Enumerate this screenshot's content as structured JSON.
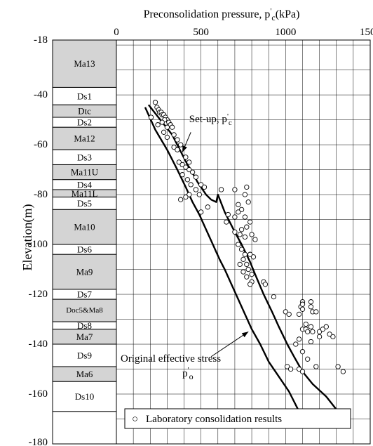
{
  "chart_data": {
    "type": "scatter",
    "title_parts": {
      "prefix": "Preconsolidation pressure, p",
      "prime": "'",
      "sub": "c",
      "suffix": "(kPa)"
    },
    "ylabel": "Elevation(m)",
    "xlim": [
      0,
      1500
    ],
    "ylim": [
      -180,
      -18
    ],
    "x_ticks": [
      0,
      500,
      1000,
      1500
    ],
    "y_ticks": [
      -18,
      -40,
      -60,
      -80,
      -100,
      -120,
      -140,
      -160,
      -180
    ],
    "grid": true,
    "legend": {
      "position": "bottom",
      "marker": "○",
      "label": "Laboratory consolidation results"
    },
    "annotations": [
      {
        "id": "setup",
        "prefix": "Set-up, p",
        "prime": "'",
        "sub": "c",
        "x": 570,
        "y": -63
      },
      {
        "id": "original",
        "line1": "Original effective stress",
        "p": "p",
        "prime": "'",
        "sub": "o",
        "x": 780,
        "y": -135
      }
    ],
    "strata": [
      {
        "label": "Ma13",
        "top": -18,
        "bottom": -37,
        "shaded": true
      },
      {
        "label": "Ds1",
        "top": -37,
        "bottom": -44,
        "shaded": false
      },
      {
        "label": "Dtc",
        "top": -44,
        "bottom": -49,
        "shaded": true
      },
      {
        "label": "Ds2",
        "top": -49,
        "bottom": -53,
        "shaded": false
      },
      {
        "label": "Ma12",
        "top": -53,
        "bottom": -62,
        "shaded": true
      },
      {
        "label": "Ds3",
        "top": -62,
        "bottom": -68,
        "shaded": false
      },
      {
        "label": "Ma11U",
        "top": -68,
        "bottom": -74,
        "shaded": true
      },
      {
        "label": "Ds4",
        "top": -74,
        "bottom": -78,
        "shaded": false
      },
      {
        "label": "Ma11L",
        "top": -78,
        "bottom": -81,
        "shaded": true
      },
      {
        "label": "Ds5",
        "top": -81,
        "bottom": -86,
        "shaded": false
      },
      {
        "label": "Ma10",
        "top": -86,
        "bottom": -100,
        "shaded": true
      },
      {
        "label": "Ds6",
        "top": -100,
        "bottom": -104,
        "shaded": false
      },
      {
        "label": "Ma9",
        "top": -104,
        "bottom": -118,
        "shaded": true
      },
      {
        "label": "Ds7",
        "top": -118,
        "bottom": -122,
        "shaded": false
      },
      {
        "label": "Doc5&Ma8",
        "top": -122,
        "bottom": -131,
        "shaded": true
      },
      {
        "label": "Ds8",
        "top": -131,
        "bottom": -134,
        "shaded": false
      },
      {
        "label": "Ma7",
        "top": -134,
        "bottom": -140,
        "shaded": true
      },
      {
        "label": "Ds9",
        "top": -140,
        "bottom": -149,
        "shaded": false
      },
      {
        "label": "Ma6",
        "top": -149,
        "bottom": -155,
        "shaded": true
      },
      {
        "label": "Ds10",
        "top": -155,
        "bottom": -167,
        "shaded": false
      },
      {
        "label": "",
        "top": -167,
        "bottom": -180,
        "shaded": false
      }
    ],
    "series": [
      {
        "name": "Set-up, p'c",
        "kind": "line",
        "points": [
          [
            190,
            -44
          ],
          [
            260,
            -50
          ],
          [
            330,
            -56
          ],
          [
            390,
            -64
          ],
          [
            420,
            -68
          ],
          [
            440,
            -70
          ],
          [
            480,
            -75
          ],
          [
            530,
            -80
          ],
          [
            560,
            -82
          ],
          [
            590,
            -83
          ],
          [
            600,
            -80
          ],
          [
            640,
            -87
          ],
          [
            700,
            -95
          ],
          [
            740,
            -100
          ],
          [
            790,
            -107
          ],
          [
            820,
            -112
          ],
          [
            870,
            -120
          ],
          [
            920,
            -127
          ],
          [
            960,
            -133
          ],
          [
            1010,
            -140
          ],
          [
            1050,
            -145
          ],
          [
            1100,
            -151
          ],
          [
            1160,
            -156
          ],
          [
            1240,
            -161
          ],
          [
            1310,
            -167
          ]
        ]
      },
      {
        "name": "Original effective stress p'o",
        "kind": "line",
        "points": [
          [
            170,
            -45
          ],
          [
            230,
            -54
          ],
          [
            300,
            -62
          ],
          [
            360,
            -70
          ],
          [
            410,
            -77
          ],
          [
            450,
            -83
          ],
          [
            490,
            -88
          ],
          [
            530,
            -94
          ],
          [
            570,
            -100
          ],
          [
            590,
            -103
          ],
          [
            610,
            -106
          ],
          [
            640,
            -110
          ],
          [
            680,
            -116
          ],
          [
            720,
            -122
          ],
          [
            760,
            -128
          ],
          [
            800,
            -134
          ],
          [
            850,
            -140
          ],
          [
            900,
            -147
          ],
          [
            960,
            -153
          ],
          [
            1020,
            -159
          ],
          [
            1080,
            -167
          ]
        ]
      },
      {
        "name": "Laboratory consolidation results",
        "kind": "scatter",
        "points": [
          [
            230,
            -43
          ],
          [
            240,
            -45
          ],
          [
            250,
            -46
          ],
          [
            255,
            -47
          ],
          [
            265,
            -47
          ],
          [
            270,
            -48
          ],
          [
            280,
            -48
          ],
          [
            290,
            -49
          ],
          [
            300,
            -50
          ],
          [
            285,
            -50
          ],
          [
            270,
            -51
          ],
          [
            310,
            -51
          ],
          [
            320,
            -52
          ],
          [
            330,
            -53
          ],
          [
            205,
            -49
          ],
          [
            245,
            -52
          ],
          [
            300,
            -53
          ],
          [
            280,
            -55
          ],
          [
            340,
            -56
          ],
          [
            300,
            -57
          ],
          [
            360,
            -58
          ],
          [
            380,
            -60
          ],
          [
            340,
            -61
          ],
          [
            360,
            -62
          ],
          [
            410,
            -65
          ],
          [
            430,
            -67
          ],
          [
            370,
            -67
          ],
          [
            390,
            -68
          ],
          [
            410,
            -69
          ],
          [
            430,
            -70
          ],
          [
            450,
            -71
          ],
          [
            470,
            -73
          ],
          [
            500,
            -76
          ],
          [
            520,
            -77
          ],
          [
            390,
            -72
          ],
          [
            420,
            -74
          ],
          [
            440,
            -76
          ],
          [
            470,
            -78
          ],
          [
            490,
            -80
          ],
          [
            430,
            -80
          ],
          [
            410,
            -81
          ],
          [
            380,
            -82
          ],
          [
            540,
            -85
          ],
          [
            500,
            -87
          ],
          [
            620,
            -78
          ],
          [
            700,
            -78
          ],
          [
            770,
            -77
          ],
          [
            760,
            -80
          ],
          [
            780,
            -83
          ],
          [
            720,
            -84
          ],
          [
            740,
            -86
          ],
          [
            720,
            -87
          ],
          [
            660,
            -88
          ],
          [
            700,
            -89
          ],
          [
            650,
            -91
          ],
          [
            760,
            -89
          ],
          [
            790,
            -91
          ],
          [
            770,
            -93
          ],
          [
            740,
            -94
          ],
          [
            700,
            -95
          ],
          [
            730,
            -96
          ],
          [
            760,
            -97
          ],
          [
            800,
            -96
          ],
          [
            820,
            -98
          ],
          [
            720,
            -100
          ],
          [
            740,
            -102
          ],
          [
            760,
            -104
          ],
          [
            790,
            -104
          ],
          [
            810,
            -105
          ],
          [
            750,
            -106
          ],
          [
            770,
            -108
          ],
          [
            730,
            -108
          ],
          [
            780,
            -110
          ],
          [
            750,
            -111
          ],
          [
            800,
            -112
          ],
          [
            770,
            -113
          ],
          [
            800,
            -115
          ],
          [
            790,
            -116
          ],
          [
            870,
            -115
          ],
          [
            880,
            -116
          ],
          [
            930,
            -121
          ],
          [
            1000,
            -127
          ],
          [
            1020,
            -128
          ],
          [
            1080,
            -128
          ],
          [
            1090,
            -125
          ],
          [
            1100,
            -123
          ],
          [
            1100,
            -124
          ],
          [
            1100,
            -126
          ],
          [
            1150,
            -125
          ],
          [
            1150,
            -123
          ],
          [
            1160,
            -127
          ],
          [
            1180,
            -127
          ],
          [
            1120,
            -132
          ],
          [
            1100,
            -134
          ],
          [
            1120,
            -134
          ],
          [
            1130,
            -135
          ],
          [
            1150,
            -133
          ],
          [
            1160,
            -135
          ],
          [
            1200,
            -135
          ],
          [
            1220,
            -134
          ],
          [
            1240,
            -133
          ],
          [
            1260,
            -136
          ],
          [
            1280,
            -137
          ],
          [
            1200,
            -137
          ],
          [
            1150,
            -139
          ],
          [
            1080,
            -138
          ],
          [
            1060,
            -140
          ],
          [
            1100,
            -143
          ],
          [
            1130,
            -146
          ],
          [
            1180,
            -149
          ],
          [
            1010,
            -149
          ],
          [
            1030,
            -150
          ],
          [
            1080,
            -150
          ],
          [
            1100,
            -151
          ],
          [
            1310,
            -149
          ],
          [
            1340,
            -151
          ]
        ]
      }
    ]
  }
}
